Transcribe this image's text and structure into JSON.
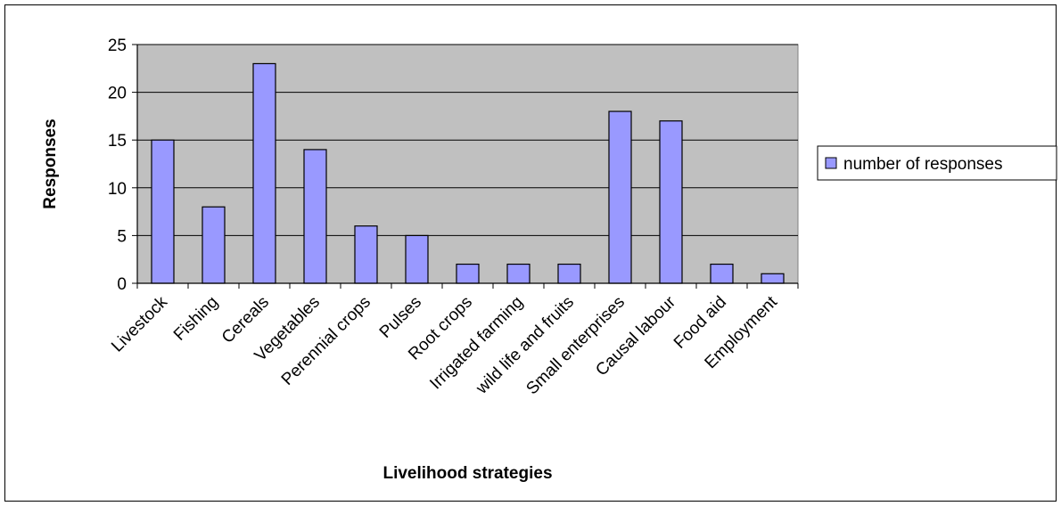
{
  "chart_data": {
    "type": "bar",
    "title": "",
    "xlabel": "Livelihood strategies",
    "ylabel": "Responses",
    "categories": [
      "Livestock",
      "Fishing",
      "Cereals",
      "Vegetables",
      "Perennial crops",
      "Pulses",
      "Root crops",
      "Irrigated farming",
      "wild life and fruits",
      "Small enterprises",
      "Causal labour",
      "Food aid",
      "Employment"
    ],
    "series": [
      {
        "name": "number of responses",
        "values": [
          15,
          8,
          23,
          14,
          6,
          5,
          2,
          2,
          2,
          18,
          17,
          2,
          1
        ]
      }
    ],
    "ylim": [
      0,
      25
    ],
    "yticks": [
      0,
      5,
      10,
      15,
      20,
      25
    ],
    "grid": true,
    "legend_position": "right",
    "colors": {
      "bar": "#9999ff",
      "plot_background": "#c0c0c0",
      "gridline": "#000000"
    }
  }
}
